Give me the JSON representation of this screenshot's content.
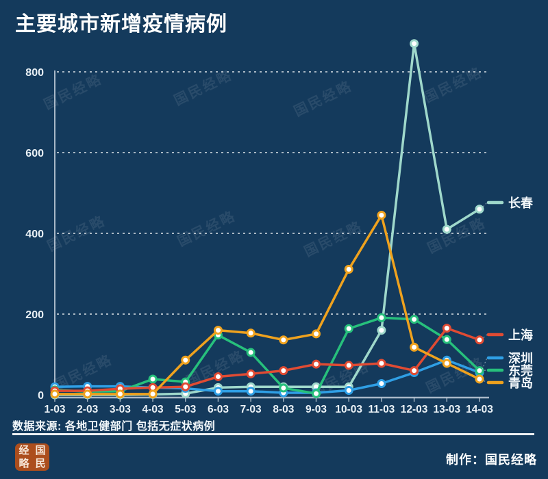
{
  "title": "主要城市新增疫情病例",
  "watermark_text": "国民经略",
  "source_note": "数据来源: 各地卫健部门 包括无症状病例",
  "footer": {
    "credit": "制作：国民经略",
    "logo_chars": [
      "经",
      "国",
      "略",
      "民"
    ]
  },
  "colors": {
    "background": "#143A5C",
    "title_text": "#FFFFFF",
    "axis": "#C3CFDA",
    "grid": "#FFFFFF",
    "label_text": "#EAF1F6",
    "legend_text": "#F2F7FA",
    "divider": "#FFFFFF",
    "logo_bg": "#AC4E1D",
    "logo_text": "#F7E8DA"
  },
  "chart_data": {
    "type": "line",
    "title": "主要城市新增疫情病例",
    "xlabel": "",
    "ylabel": "",
    "categories": [
      "1-03",
      "2-03",
      "3-03",
      "4-03",
      "5-03",
      "6-03",
      "7-03",
      "8-03",
      "9-03",
      "10-03",
      "11-03",
      "12-03",
      "13-03",
      "14-03"
    ],
    "series": [
      {
        "name": "长春",
        "color": "#9FD8CB",
        "values": [
          0,
          0,
          0,
          1,
          3,
          18,
          20,
          20,
          20,
          20,
          160,
          870,
          410,
          460
        ]
      },
      {
        "name": "深圳",
        "color": "#2F9FE5",
        "values": [
          20,
          21,
          21,
          18,
          16,
          9,
          9,
          5,
          5,
          11,
          28,
          55,
          86,
          55
        ]
      },
      {
        "name": "东莞",
        "color": "#27C07C",
        "values": [
          12,
          8,
          9,
          39,
          32,
          148,
          105,
          17,
          3,
          164,
          191,
          187,
          137,
          60
        ]
      },
      {
        "name": "上海",
        "color": "#E04B33",
        "values": [
          10,
          10,
          15,
          18,
          20,
          45,
          52,
          60,
          76,
          73,
          78,
          60,
          165,
          136
        ]
      },
      {
        "name": "青岛",
        "color": "#EFA21E",
        "values": [
          2,
          2,
          2,
          2,
          86,
          160,
          153,
          136,
          151,
          311,
          445,
          118,
          78,
          39
        ]
      }
    ],
    "legend_order_top_to_bottom": [
      "长春",
      "上海",
      "深圳",
      "东莞",
      "青岛"
    ],
    "y_ticks": [
      0,
      200,
      400,
      600,
      800
    ],
    "ylim": [
      0,
      880
    ],
    "grid": "dashed-horizontal",
    "legend_position": "right",
    "marker": "circle-white-fill"
  }
}
